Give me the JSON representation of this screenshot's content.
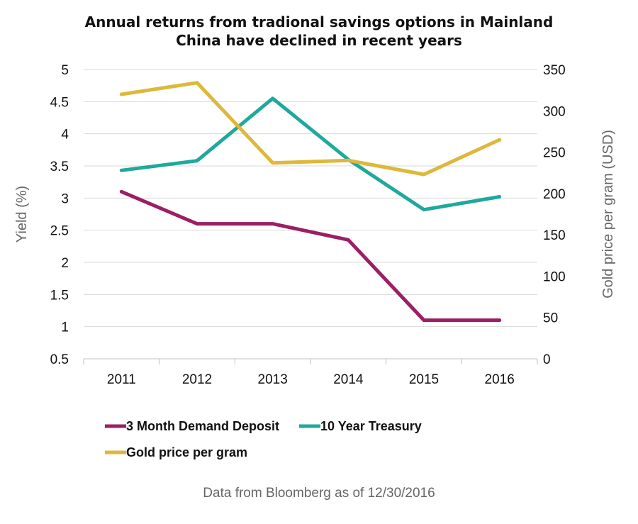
{
  "chart_data": {
    "type": "line",
    "title_line1": "Annual returns from tradional savings options in Mainland",
    "title_line2": "China have declined in recent years",
    "categories": [
      "2011",
      "2012",
      "2013",
      "2014",
      "2015",
      "2016"
    ],
    "ylabel_left": "Yield (%)",
    "ylabel_right": "Gold price per gram (USD)",
    "ylim_left": [
      0.5,
      5
    ],
    "ylim_right": [
      0,
      350
    ],
    "yticks_left": [
      "0.5",
      "1",
      "1.5",
      "2",
      "2.5",
      "3",
      "3.5",
      "4",
      "4.5",
      "5"
    ],
    "yticks_right": [
      "0",
      "50",
      "100",
      "150",
      "200",
      "250",
      "300",
      "350"
    ],
    "grid": true,
    "legend_position": "bottom",
    "series": [
      {
        "name": "3 Month Demand Deposit",
        "axis": "left",
        "color": "#9B1F63",
        "values": [
          3.1,
          2.6,
          2.6,
          2.35,
          1.1,
          1.1
        ]
      },
      {
        "name": "10 Year Treasury",
        "axis": "left",
        "color": "#1FA99C",
        "values": [
          3.43,
          3.58,
          4.55,
          3.6,
          2.82,
          3.02
        ]
      },
      {
        "name": "Gold price per gram",
        "axis": "right",
        "color": "#DDB83A",
        "values": [
          320,
          334,
          237,
          240,
          223,
          265
        ]
      }
    ],
    "footnote": "Data from Bloomberg as of 12/30/2016"
  }
}
